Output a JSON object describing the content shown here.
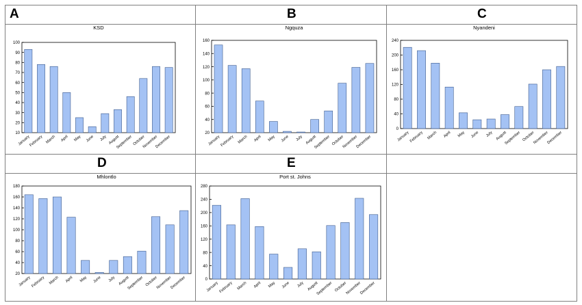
{
  "panels": [
    {
      "letter": "A",
      "title": "KSD"
    },
    {
      "letter": "B",
      "title": "Ngquza"
    },
    {
      "letter": "C",
      "title": "Nyandeni"
    },
    {
      "letter": "D",
      "title": "Mhlontlo"
    },
    {
      "letter": "E",
      "title": "Port st. Johns"
    }
  ],
  "colors": {
    "bar_fill": "#a4c2f4",
    "bar_stroke": "#3c5a8c",
    "axis": "#000000",
    "border": "#7f7f7f"
  },
  "chart_data": [
    {
      "type": "bar",
      "title": "KSD",
      "xlabel": "",
      "ylabel": "",
      "categories": [
        "January",
        "February",
        "March",
        "April",
        "May",
        "June",
        "July",
        "August",
        "September",
        "October",
        "November",
        "December"
      ],
      "values": [
        93,
        78,
        76,
        50,
        25,
        16,
        29,
        33,
        46,
        64,
        76,
        75
      ],
      "ylim": [
        10,
        100
      ],
      "yticks": [
        10,
        20,
        30,
        40,
        50,
        60,
        70,
        80,
        90,
        100
      ],
      "grid": false
    },
    {
      "type": "bar",
      "title": "Ngquza",
      "xlabel": "",
      "ylabel": "",
      "categories": [
        "January",
        "February",
        "March",
        "April",
        "May",
        "June",
        "July",
        "August",
        "September",
        "October",
        "November",
        "December"
      ],
      "values": [
        153,
        122,
        117,
        68,
        37,
        22,
        21,
        40,
        53,
        95,
        119,
        125
      ],
      "ylim": [
        20,
        160
      ],
      "yticks": [
        20,
        40,
        60,
        80,
        100,
        120,
        140,
        160
      ],
      "grid": false
    },
    {
      "type": "bar",
      "title": "Nyandeni",
      "xlabel": "",
      "ylabel": "",
      "categories": [
        "January",
        "February",
        "March",
        "April",
        "May",
        "June",
        "July",
        "August",
        "September",
        "October",
        "November",
        "December"
      ],
      "values": [
        221,
        212,
        178,
        113,
        43,
        24,
        26,
        38,
        60,
        121,
        160,
        169
      ],
      "ylim": [
        0,
        240
      ],
      "yticks": [
        0,
        40,
        80,
        120,
        160,
        200,
        240
      ],
      "grid": false
    },
    {
      "type": "bar",
      "title": "Mhlontlo",
      "xlabel": "",
      "ylabel": "",
      "categories": [
        "January",
        "February",
        "March",
        "April",
        "May",
        "June",
        "July",
        "August",
        "September",
        "October",
        "November",
        "December"
      ],
      "values": [
        164,
        157,
        160,
        123,
        44,
        22,
        44,
        51,
        61,
        124,
        109,
        135
      ],
      "ylim": [
        20,
        180
      ],
      "yticks": [
        20,
        40,
        60,
        80,
        100,
        120,
        140,
        160,
        180
      ],
      "grid": false
    },
    {
      "type": "bar",
      "title": "Port st. Johns",
      "xlabel": "",
      "ylabel": "",
      "categories": [
        "January",
        "February",
        "March",
        "April",
        "May",
        "June",
        "July",
        "August",
        "September",
        "October",
        "November",
        "December"
      ],
      "values": [
        222,
        163,
        242,
        158,
        75,
        35,
        91,
        82,
        161,
        170,
        243,
        194
      ],
      "ylim": [
        0,
        280
      ],
      "yticks": [
        0,
        40,
        80,
        120,
        160,
        200,
        240,
        280
      ],
      "grid": false
    }
  ]
}
